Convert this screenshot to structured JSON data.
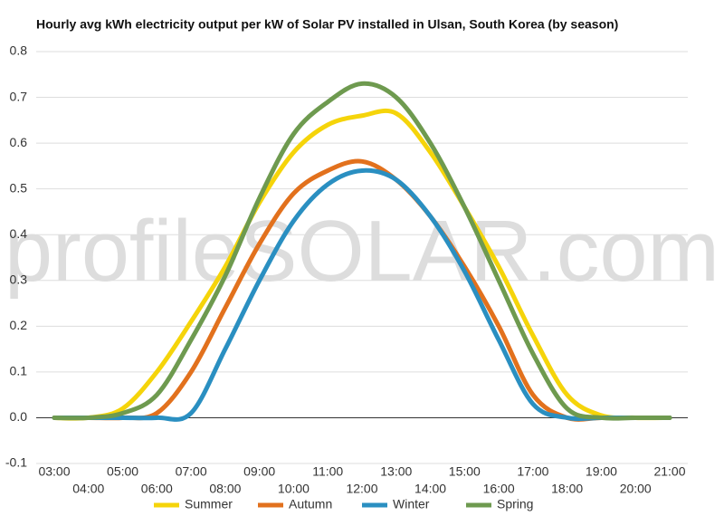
{
  "chart_data": {
    "type": "line",
    "title": "Hourly avg kWh electricity output per kW of Solar PV installed in Ulsan, South Korea (by season)",
    "watermark": "profileSOLAR.com",
    "categories": [
      "03:00",
      "04:00",
      "05:00",
      "06:00",
      "07:00",
      "08:00",
      "09:00",
      "10:00",
      "11:00",
      "12:00",
      "13:00",
      "14:00",
      "15:00",
      "16:00",
      "17:00",
      "18:00",
      "19:00",
      "20:00",
      "21:00"
    ],
    "series": [
      {
        "name": "Summer",
        "color": "#f5d40a",
        "values": [
          0,
          0,
          0.02,
          0.1,
          0.21,
          0.33,
          0.47,
          0.58,
          0.64,
          0.66,
          0.665,
          0.58,
          0.46,
          0.33,
          0.18,
          0.05,
          0.005,
          0,
          0
        ]
      },
      {
        "name": "Autumn",
        "color": "#e2711d",
        "values": [
          0,
          0,
          0,
          0.01,
          0.1,
          0.24,
          0.38,
          0.49,
          0.54,
          0.56,
          0.52,
          0.44,
          0.33,
          0.2,
          0.05,
          0,
          0,
          0,
          0
        ]
      },
      {
        "name": "Winter",
        "color": "#2a8fc1",
        "values": [
          0,
          0,
          0,
          0,
          0.01,
          0.15,
          0.3,
          0.43,
          0.51,
          0.54,
          0.52,
          0.44,
          0.32,
          0.17,
          0.03,
          0,
          0,
          0,
          0
        ]
      },
      {
        "name": "Spring",
        "color": "#6e9a4f",
        "values": [
          0,
          0,
          0.01,
          0.05,
          0.17,
          0.31,
          0.48,
          0.62,
          0.69,
          0.73,
          0.7,
          0.6,
          0.46,
          0.3,
          0.14,
          0.02,
          0,
          0,
          0
        ]
      }
    ],
    "ylim": [
      -0.1,
      0.8
    ],
    "yticks": [
      -0.1,
      {
        "value": 0,
        "label": "0.0"
      },
      0.1,
      0.2,
      0.3,
      0.4,
      0.5,
      0.6,
      0.7,
      0.8
    ],
    "grid": true,
    "legend": "bottom"
  }
}
